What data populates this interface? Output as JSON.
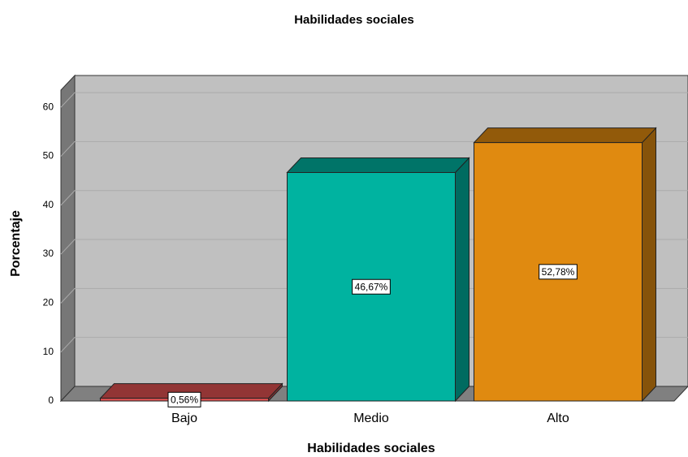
{
  "chart_data": {
    "type": "bar3d",
    "title": "Habilidades sociales",
    "x_label": "Habilidades sociales",
    "y_label": "Porcentaje",
    "categories": [
      "Bajo",
      "Medio",
      "Alto"
    ],
    "values": [
      0.56,
      46.67,
      52.78
    ],
    "value_labels": [
      "0,56%",
      "46,67%",
      "52,78%"
    ],
    "colors": [
      "#e05252",
      "#00b3a0",
      "#e08a10"
    ],
    "ylim": [
      0,
      63.5
    ],
    "yticks": [
      0,
      10,
      20,
      30,
      40,
      50,
      60
    ],
    "grid": true
  }
}
